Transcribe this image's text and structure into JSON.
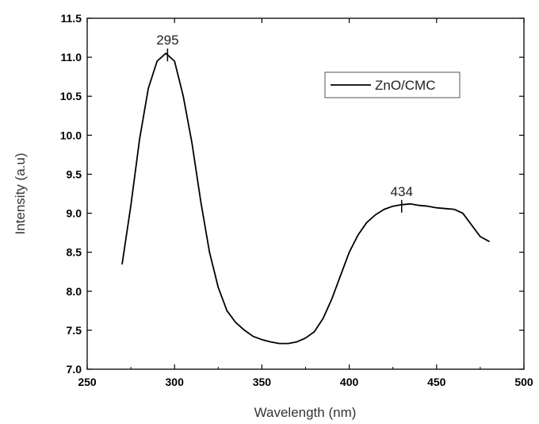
{
  "chart_data": {
    "type": "line",
    "xlabel": "Wavelength (nm)",
    "ylabel": "Intensity (a.u)",
    "xlim": [
      250,
      500
    ],
    "ylim": [
      7.0,
      11.5
    ],
    "xticks": [
      250,
      300,
      350,
      400,
      450,
      500
    ],
    "yticks": [
      7.0,
      7.5,
      8.0,
      8.5,
      9.0,
      9.5,
      10.0,
      10.5,
      11.0,
      11.5
    ],
    "xtick_labels": [
      "250",
      "300",
      "350",
      "400",
      "450",
      "500"
    ],
    "ytick_labels": [
      "7.0",
      "7.5",
      "8.0",
      "8.5",
      "9.0",
      "9.5",
      "10.0",
      "10.5",
      "11.0",
      "11.5"
    ],
    "grid": false,
    "legend": {
      "placement": "top-right",
      "entries": [
        "ZnO/CMC"
      ]
    },
    "series": [
      {
        "name": "ZnO/CMC",
        "color": "#000000",
        "x": [
          270,
          275,
          280,
          285,
          290,
          295,
          300,
          305,
          310,
          315,
          320,
          325,
          330,
          335,
          340,
          345,
          350,
          355,
          360,
          365,
          370,
          375,
          380,
          385,
          390,
          395,
          400,
          405,
          410,
          415,
          420,
          425,
          430,
          435,
          440,
          445,
          450,
          455,
          460,
          465,
          470,
          475,
          480
        ],
        "y": [
          8.35,
          9.1,
          9.95,
          10.6,
          10.95,
          11.05,
          10.95,
          10.5,
          9.9,
          9.15,
          8.5,
          8.05,
          7.75,
          7.6,
          7.5,
          7.42,
          7.38,
          7.35,
          7.33,
          7.33,
          7.35,
          7.4,
          7.48,
          7.65,
          7.9,
          8.2,
          8.5,
          8.72,
          8.88,
          8.98,
          9.05,
          9.09,
          9.11,
          9.12,
          9.1,
          9.09,
          9.07,
          9.06,
          9.05,
          9.0,
          8.85,
          8.7,
          8.64
        ]
      }
    ],
    "annotations": [
      {
        "text": "295",
        "x": 296,
        "y": 11.05
      },
      {
        "text": "434",
        "x": 430,
        "y": 9.11
      }
    ]
  }
}
